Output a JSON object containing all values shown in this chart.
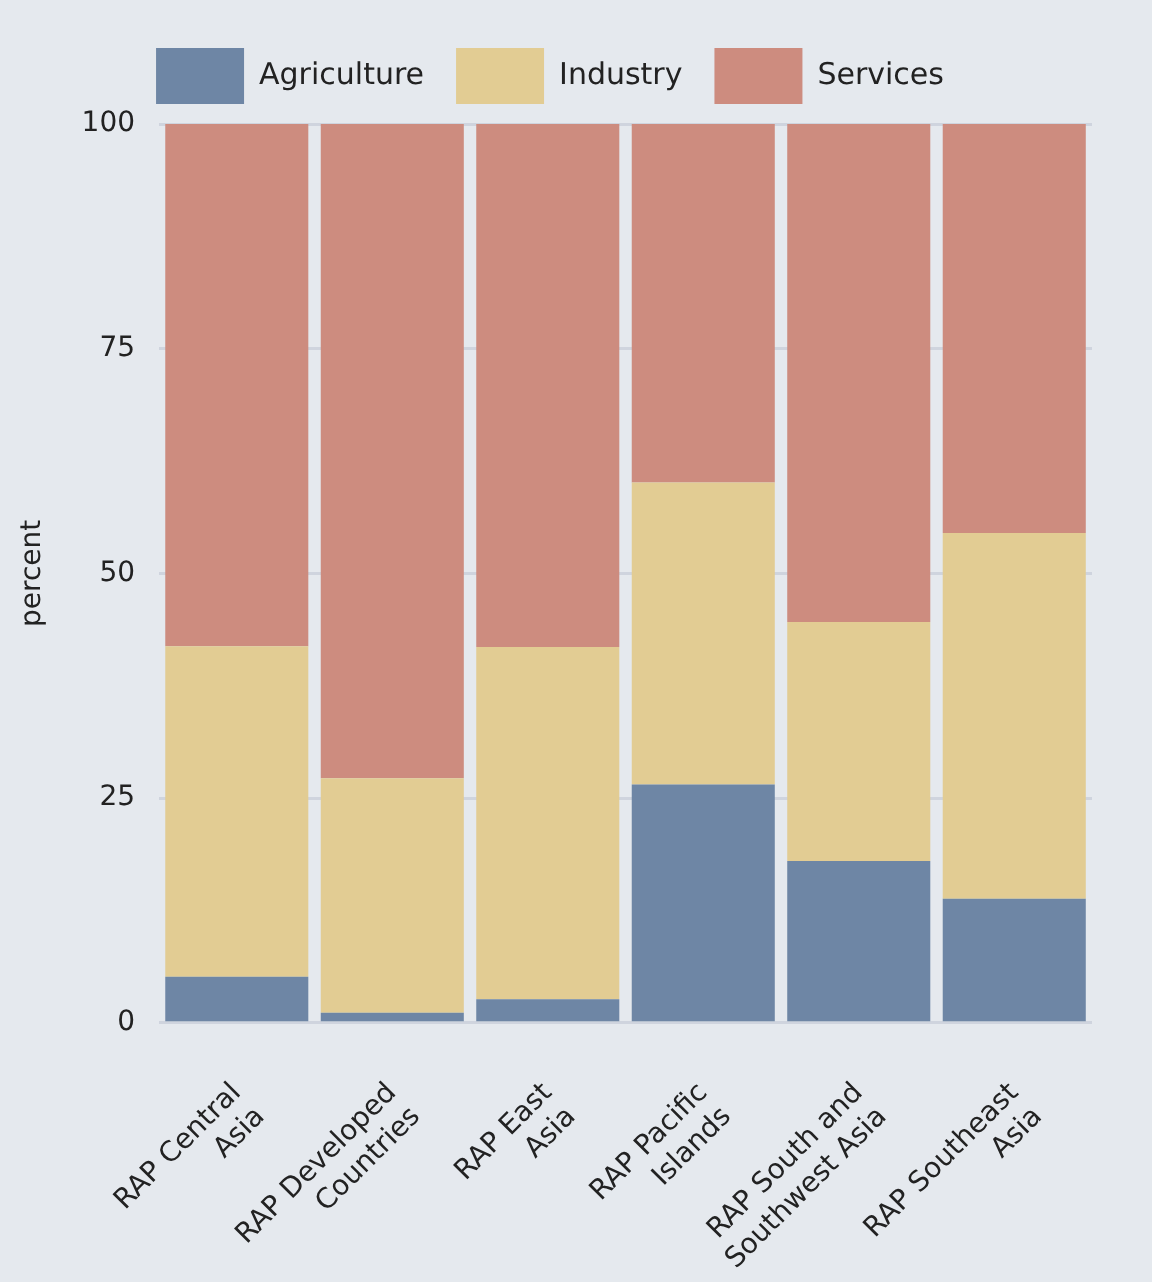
{
  "chart_data": {
    "type": "bar",
    "stacked": true,
    "ylabel": "percent",
    "categories": [
      "RAP Central\nAsia",
      "RAP Developed\nCountries",
      "RAP East\nAsia",
      "RAP Pacific\nIslands",
      "RAP South and\nSouthwest Asia",
      "RAP Southeast\nAsia"
    ],
    "series": [
      {
        "name": "Agriculture",
        "color": "#6e86a5",
        "values": [
          5.1,
          1.1,
          2.6,
          26.5,
          18.0,
          13.8
        ]
      },
      {
        "name": "Industry",
        "color": "#e2cc93",
        "values": [
          36.8,
          26.1,
          39.2,
          33.6,
          26.6,
          40.7
        ]
      },
      {
        "name": "Services",
        "color": "#cd8c7f",
        "values": [
          58.1,
          72.8,
          58.2,
          39.9,
          55.4,
          45.5
        ]
      }
    ],
    "ylim": [
      0,
      100
    ],
    "yticks": [
      0,
      25,
      50,
      75,
      100
    ],
    "grid": "y",
    "legend": "top"
  }
}
